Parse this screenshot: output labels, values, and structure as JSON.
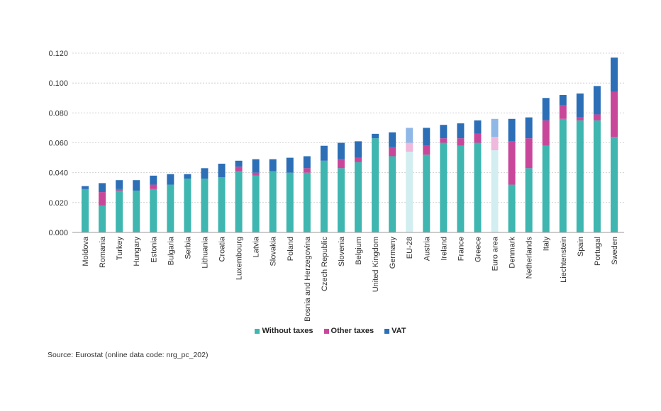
{
  "chart_data": {
    "type": "bar",
    "stacked": true,
    "categories": [
      "Moldova",
      "Romania",
      "Turkey",
      "Hungary",
      "Estonia",
      "Bulgaria",
      "Serbia",
      "Lithuania",
      "Croatia",
      "Luxembourg",
      "Latvia",
      "Slovakia",
      "Poland",
      "Bosnia and Herzegovina",
      "Czech Republic",
      "Slovenia",
      "Belgium",
      "United Kingdom",
      "Germany",
      "EU-28",
      "Austria",
      "Ireland",
      "France",
      "Greece",
      "Euro area",
      "Denmark",
      "Netherlands",
      "Italy",
      "Liechtenstein",
      "Spain",
      "Portugal",
      "Sweden"
    ],
    "highlighted_categories": [
      "EU-28",
      "Euro area"
    ],
    "series": [
      {
        "name": "Without taxes",
        "color": "#3fb6b0",
        "highlight_color": "#d3eef0",
        "values": [
          0.029,
          0.018,
          0.028,
          0.028,
          0.029,
          0.032,
          0.036,
          0.036,
          0.037,
          0.041,
          0.038,
          0.041,
          0.04,
          0.04,
          0.048,
          0.043,
          0.047,
          0.063,
          0.051,
          0.054,
          0.052,
          0.06,
          0.058,
          0.06,
          0.055,
          0.032,
          0.043,
          0.058,
          0.076,
          0.075,
          0.075,
          0.064
        ]
      },
      {
        "name": "Other taxes",
        "color": "#c9479b",
        "highlight_color": "#eeb9dc",
        "values": [
          0.0,
          0.009,
          0.001,
          0.0,
          0.003,
          0.0,
          0.0,
          0.0,
          0.0,
          0.003,
          0.002,
          0.0,
          0.0,
          0.003,
          0.0,
          0.006,
          0.003,
          0.0,
          0.006,
          0.006,
          0.006,
          0.003,
          0.005,
          0.006,
          0.009,
          0.029,
          0.02,
          0.017,
          0.009,
          0.002,
          0.004,
          0.03
        ]
      },
      {
        "name": "VAT",
        "color": "#2c6fb7",
        "highlight_color": "#8fb8e6",
        "values": [
          0.002,
          0.006,
          0.006,
          0.007,
          0.006,
          0.007,
          0.003,
          0.007,
          0.009,
          0.004,
          0.009,
          0.008,
          0.01,
          0.008,
          0.01,
          0.011,
          0.011,
          0.003,
          0.01,
          0.01,
          0.012,
          0.009,
          0.01,
          0.009,
          0.012,
          0.015,
          0.014,
          0.015,
          0.007,
          0.016,
          0.019,
          0.023
        ]
      }
    ],
    "ylim": [
      0,
      0.12
    ],
    "yticks": [
      "0.000",
      "0.020",
      "0.040",
      "0.060",
      "0.080",
      "0.100",
      "0.120"
    ],
    "grid": true,
    "legend_position": "bottom"
  },
  "source": "Source: Eurostat (online data code: nrg_pc_202)"
}
